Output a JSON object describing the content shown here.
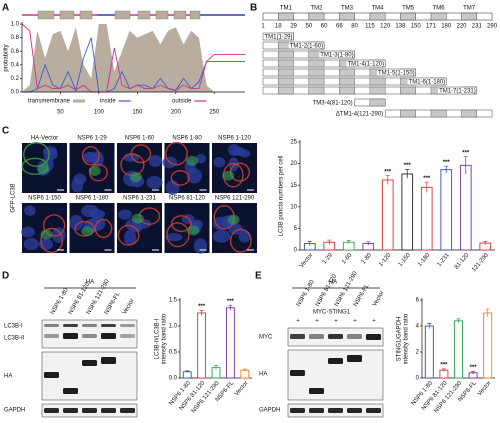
{
  "figure": {
    "panel_labels": [
      "A",
      "B",
      "C",
      "D",
      "E"
    ],
    "diagram_b": {
      "tm_labels": [
        "TM1",
        "TM2",
        "TM3",
        "TM4",
        "TM5",
        "TM6",
        "TM7"
      ],
      "positions": [
        1,
        18,
        29,
        50,
        60,
        66,
        80,
        115,
        120,
        138,
        150,
        171,
        180,
        220,
        231,
        290
      ],
      "constructs": [
        "TM1(1-29)",
        "TM1-2(1-60)",
        "TM1-3(1-80)",
        "TM1-4(1-120)",
        "TM1-5(1-150)",
        "TM1-6(1-180)",
        "TM1-7(1-231)",
        "TM3-4(81-120)",
        "ΔTM1-4(121-290)"
      ]
    },
    "micrographs": {
      "row_label": "GFP-LC3B",
      "titles": [
        "HA-Vector",
        "NSP6 1-29",
        "NSP6 1-60",
        "NSP6 1-80",
        "NSP6 1-120",
        "NSP6 1-150",
        "NSP6 1-180",
        "NSP6 1-231",
        "NSP6 81-120",
        "NSP6 121-290"
      ]
    },
    "blot_d": {
      "header": "HA",
      "lanes": [
        "NSP6 1-80",
        "NSP6 81-120",
        "NSP6 121-290",
        "NSP6-FL",
        "Vector"
      ],
      "bands": [
        "LC3B-I",
        "LC3B-II",
        "HA",
        "GAPDH"
      ]
    },
    "blot_e": {
      "header": "HA",
      "lanes": [
        "NSP6 1-80",
        "NSP6 81-120",
        "NSP6 121-290",
        "NSP6-FL",
        "Vector"
      ],
      "treatment": "MYC-STING1",
      "treatment_marks": [
        "+",
        "+",
        "+",
        "+",
        "+"
      ],
      "bands": [
        "MYC",
        "HA",
        "GAPDH"
      ]
    }
  },
  "chart_data": [
    {
      "type": "line",
      "ylabel": "probability",
      "x": [
        0,
        10,
        20,
        30,
        40,
        50,
        60,
        70,
        80,
        90,
        100,
        110,
        120,
        130,
        140,
        150,
        160,
        170,
        180,
        190,
        200,
        210,
        220,
        230,
        240,
        250,
        260,
        270,
        280,
        290
      ],
      "series": [
        {
          "name": "transmembrane",
          "color": "#b8ad9f",
          "area": true,
          "values": [
            0,
            0.1,
            0.9,
            0.5,
            0.85,
            0.9,
            0.6,
            0.95,
            0.4,
            0.2,
            1,
            1,
            0.3,
            0.6,
            0.9,
            0.8,
            0.85,
            0.9,
            0.7,
            0.9,
            0.95,
            0.7,
            0.9,
            0.8,
            0.1,
            0,
            0,
            0,
            0,
            0
          ]
        },
        {
          "name": "inside",
          "color": "#3a5fc8",
          "values": [
            0,
            0,
            0.05,
            0.4,
            0.1,
            0.05,
            0.3,
            0.02,
            0.5,
            0.8,
            0,
            0,
            0.05,
            0.3,
            0.05,
            0.1,
            0.1,
            0.05,
            0.2,
            0.05,
            0.02,
            0.2,
            0.05,
            0.15,
            0.45,
            0.45,
            0.45,
            0.45,
            0.45,
            0.45
          ]
        },
        {
          "name": "outside",
          "color": "#d02f90",
          "values": [
            1,
            0.9,
            0.05,
            0.1,
            0.05,
            0.05,
            0.1,
            0.03,
            0.1,
            0,
            0,
            0,
            0.65,
            0.1,
            0.05,
            0.1,
            0.05,
            0.05,
            0.1,
            0.05,
            0.03,
            0.1,
            0.05,
            0.05,
            0.45,
            0.55,
            0.55,
            0.55,
            0.55,
            0.55
          ]
        }
      ],
      "xlim": [
        0,
        290
      ],
      "xticks": [
        50,
        100,
        150,
        200,
        250
      ],
      "ylim": [
        0,
        1
      ],
      "yticks": [
        {
          "value": 0,
          "label": "0.0"
        },
        0.2,
        0.4,
        0.6,
        0.8,
        {
          "value": 1,
          "label": "1.0"
        }
      ]
    },
    {
      "type": "bar",
      "ylabel": [
        "LC3B puncta numbers per cell"
      ],
      "categories": [
        "Vector",
        "1-29",
        "1-60",
        "1-80",
        "1-120",
        "1-150",
        "1-180",
        "1-231",
        "81-120",
        "121-290"
      ],
      "values": [
        1.5,
        1.8,
        1.8,
        1.5,
        16.2,
        17.6,
        14.5,
        18.6,
        19.6,
        1.6
      ],
      "errors": [
        0.5,
        0.5,
        0.4,
        0.4,
        1,
        1,
        1.2,
        0.8,
        2,
        0.4
      ],
      "colors": [
        "#3050b0",
        "#e03030",
        "#30a050",
        "#7030a0",
        "#e03030",
        "#222222",
        "#e03030",
        "#3050b0",
        "#7030a0",
        "#e03030"
      ],
      "significance": [
        null,
        null,
        null,
        null,
        "***",
        "***",
        "***",
        "***",
        "***",
        null
      ],
      "ylim": [
        0,
        25
      ],
      "yticks": [
        0,
        5,
        10,
        15,
        20,
        25
      ]
    },
    {
      "type": "bar",
      "ylabel": [
        "LC3B-II/LC3B-I",
        "intensity band ratio"
      ],
      "categories": [
        "NSP6 1-80",
        "NSP6 81-120",
        "NSP6 121-290",
        "NSP6-FL",
        "Vector"
      ],
      "values": [
        0.12,
        1.25,
        0.2,
        1.35,
        0.15
      ],
      "errors": [
        0.02,
        0.05,
        0.04,
        0.05,
        0.02
      ],
      "colors": [
        "#3050b0",
        "#e03030",
        "#30a050",
        "#7030a0",
        "#f08020"
      ],
      "significance": [
        null,
        "***",
        null,
        "***",
        null
      ],
      "ylim": [
        0,
        1.5
      ],
      "yticks": [
        {
          "value": 0,
          "label": "0.0"
        },
        0.5,
        {
          "value": 1,
          "label": "1.0"
        },
        1.5
      ]
    },
    {
      "type": "bar",
      "ylabel": [
        "STING1/GAPDH",
        "intensity band ratio"
      ],
      "categories": [
        "NSP6 1-80",
        "NSP6 81-120",
        "NSP6 121-290",
        "NSP6-FL",
        "Vector"
      ],
      "values": [
        4.0,
        0.6,
        4.4,
        0.4,
        5.0
      ],
      "errors": [
        0.2,
        0.1,
        0.15,
        0.1,
        0.3
      ],
      "colors": [
        "#3050b0",
        "#e03030",
        "#30a050",
        "#7030a0",
        "#f08020"
      ],
      "significance": [
        null,
        "***",
        null,
        "***",
        null
      ],
      "ylim": [
        0,
        6
      ],
      "yticks": [
        0,
        2,
        4,
        6
      ]
    }
  ]
}
